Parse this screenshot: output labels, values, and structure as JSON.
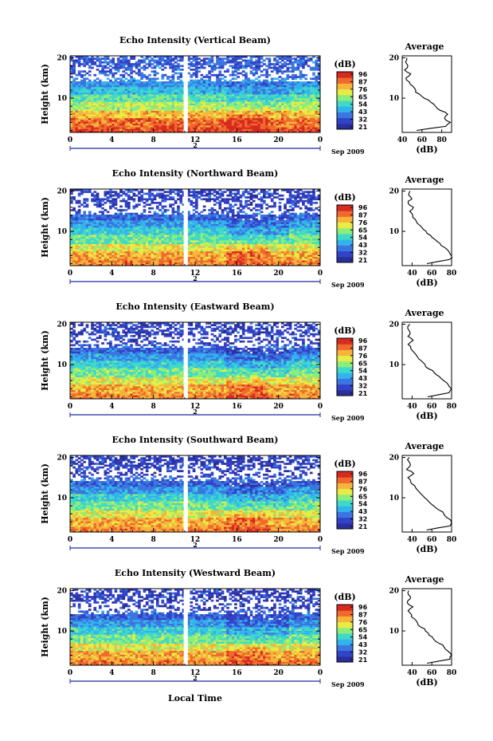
{
  "figure": {
    "xlabel": "Local Time",
    "date_label": "Sep 2009",
    "colorbar_unit": "(dB)",
    "avg_title": "Average",
    "avg_xlabel": "(dB)",
    "ylabel": "Height (km)",
    "day_marker": "2"
  },
  "colors": {
    "scale": [
      "#2a2f9c",
      "#3343c8",
      "#3b76e0",
      "#33b3ee",
      "#3fd9c8",
      "#8cec7c",
      "#e8ec46",
      "#f7b43c",
      "#ef6a2c",
      "#d82a20"
    ],
    "gap": "#ffffff",
    "axis": "#000000"
  },
  "chart_data": [
    {
      "type": "heatmap",
      "title": "Echo Intensity (Vertical Beam)",
      "beam": "vertical",
      "x_ticks": [
        "0",
        "4",
        "8",
        "12",
        "16",
        "20",
        "0"
      ],
      "y_ticks": [
        "10",
        "20"
      ],
      "xlim_hours": [
        0,
        24
      ],
      "ylim_km": [
        1.5,
        20.5
      ],
      "data_gap_hours": [
        10.9,
        11.3
      ],
      "colorbar_ticks": [
        "96",
        "87",
        "76",
        "65",
        "54",
        "43",
        "32",
        "21"
      ],
      "color_range_db": [
        21,
        96
      ],
      "average": {
        "x_ticks": [
          "40",
          "60",
          "80"
        ],
        "y_ticks": [
          "10",
          "20"
        ],
        "xlim": [
          40,
          90
        ],
        "profile": [
          [
            2,
            55
          ],
          [
            3,
            84
          ],
          [
            4,
            88
          ],
          [
            5,
            83
          ],
          [
            6,
            86
          ],
          [
            7,
            78
          ],
          [
            8,
            74
          ],
          [
            9,
            68
          ],
          [
            10,
            63
          ],
          [
            11,
            58
          ],
          [
            12,
            53
          ],
          [
            13,
            50
          ],
          [
            14,
            47
          ],
          [
            15,
            44
          ],
          [
            16,
            48
          ],
          [
            17,
            42
          ],
          [
            18,
            46
          ],
          [
            19,
            44
          ],
          [
            20,
            45
          ]
        ]
      }
    },
    {
      "type": "heatmap",
      "title": "Echo Intensity (Northward Beam)",
      "beam": "northward",
      "x_ticks": [
        "0",
        "4",
        "8",
        "12",
        "16",
        "20",
        "0"
      ],
      "y_ticks": [
        "10",
        "20"
      ],
      "xlim_hours": [
        0,
        24
      ],
      "ylim_km": [
        1.5,
        20.5
      ],
      "data_gap_hours": [
        10.9,
        11.3
      ],
      "colorbar_ticks": [
        "96",
        "87",
        "76",
        "65",
        "54",
        "43",
        "32",
        "21"
      ],
      "color_range_db": [
        21,
        96
      ],
      "average": {
        "x_ticks": [
          "40",
          "60",
          "80"
        ],
        "y_ticks": [
          "10",
          "20"
        ],
        "xlim": [
          30,
          80
        ],
        "profile": [
          [
            2,
            55
          ],
          [
            3,
            78
          ],
          [
            4,
            80
          ],
          [
            5,
            77
          ],
          [
            6,
            73
          ],
          [
            7,
            68
          ],
          [
            8,
            63
          ],
          [
            9,
            58
          ],
          [
            10,
            54
          ],
          [
            11,
            50
          ],
          [
            12,
            46
          ],
          [
            13,
            43
          ],
          [
            14,
            40
          ],
          [
            15,
            37
          ],
          [
            16,
            42
          ],
          [
            17,
            36
          ],
          [
            18,
            39
          ],
          [
            19,
            37
          ],
          [
            20,
            38
          ]
        ]
      }
    },
    {
      "type": "heatmap",
      "title": "Echo Intensity (Eastward Beam)",
      "beam": "eastward",
      "x_ticks": [
        "0",
        "4",
        "8",
        "12",
        "16",
        "20",
        "0"
      ],
      "y_ticks": [
        "10",
        "20"
      ],
      "xlim_hours": [
        0,
        24
      ],
      "ylim_km": [
        1.5,
        20.5
      ],
      "data_gap_hours": [
        10.9,
        11.3
      ],
      "colorbar_ticks": [
        "96",
        "87",
        "76",
        "65",
        "54",
        "43",
        "32",
        "21"
      ],
      "color_range_db": [
        21,
        96
      ],
      "average": {
        "x_ticks": [
          "40",
          "60",
          "80"
        ],
        "y_ticks": [
          "10",
          "20"
        ],
        "xlim": [
          30,
          80
        ],
        "profile": [
          [
            2,
            55
          ],
          [
            3,
            78
          ],
          [
            4,
            80
          ],
          [
            5,
            77
          ],
          [
            6,
            72
          ],
          [
            7,
            67
          ],
          [
            8,
            62
          ],
          [
            9,
            57
          ],
          [
            10,
            53
          ],
          [
            11,
            49
          ],
          [
            12,
            45
          ],
          [
            13,
            42
          ],
          [
            14,
            39
          ],
          [
            15,
            36
          ],
          [
            16,
            41
          ],
          [
            17,
            35
          ],
          [
            18,
            38
          ],
          [
            19,
            36
          ],
          [
            20,
            37
          ]
        ]
      }
    },
    {
      "type": "heatmap",
      "title": "Echo Intensity (Southward Beam)",
      "beam": "southward",
      "x_ticks": [
        "0",
        "4",
        "8",
        "12",
        "16",
        "20",
        "0"
      ],
      "y_ticks": [
        "10",
        "20"
      ],
      "xlim_hours": [
        0,
        24
      ],
      "ylim_km": [
        1.5,
        20.5
      ],
      "data_gap_hours": [
        10.9,
        11.3
      ],
      "colorbar_ticks": [
        "96",
        "87",
        "76",
        "65",
        "54",
        "43",
        "32",
        "21"
      ],
      "color_range_db": [
        21,
        96
      ],
      "average": {
        "x_ticks": [
          "40",
          "60",
          "80"
        ],
        "y_ticks": [
          "10",
          "20"
        ],
        "xlim": [
          30,
          80
        ],
        "profile": [
          [
            2,
            55
          ],
          [
            3,
            78
          ],
          [
            4,
            80
          ],
          [
            5,
            76
          ],
          [
            6,
            72
          ],
          [
            7,
            67
          ],
          [
            8,
            62
          ],
          [
            9,
            57
          ],
          [
            10,
            53
          ],
          [
            11,
            49
          ],
          [
            12,
            45
          ],
          [
            13,
            42
          ],
          [
            14,
            39
          ],
          [
            15,
            36
          ],
          [
            16,
            42
          ],
          [
            17,
            35
          ],
          [
            18,
            38
          ],
          [
            19,
            36
          ],
          [
            20,
            37
          ]
        ]
      }
    },
    {
      "type": "heatmap",
      "title": "Echo Intensity (Westward Beam)",
      "beam": "westward",
      "x_ticks": [
        "0",
        "4",
        "8",
        "12",
        "16",
        "20",
        "0"
      ],
      "y_ticks": [
        "10",
        "20"
      ],
      "xlim_hours": [
        0,
        24
      ],
      "ylim_km": [
        1.5,
        20.5
      ],
      "data_gap_hours": [
        10.9,
        11.3
      ],
      "colorbar_ticks": [
        "96",
        "87",
        "76",
        "65",
        "54",
        "43",
        "32",
        "21"
      ],
      "color_range_db": [
        21,
        96
      ],
      "average": {
        "x_ticks": [
          "40",
          "60",
          "80"
        ],
        "y_ticks": [
          "10",
          "20"
        ],
        "xlim": [
          30,
          80
        ],
        "profile": [
          [
            2,
            55
          ],
          [
            3,
            78
          ],
          [
            4,
            80
          ],
          [
            5,
            77
          ],
          [
            6,
            72
          ],
          [
            7,
            67
          ],
          [
            8,
            62
          ],
          [
            9,
            57
          ],
          [
            10,
            53
          ],
          [
            11,
            49
          ],
          [
            12,
            45
          ],
          [
            13,
            42
          ],
          [
            14,
            39
          ],
          [
            15,
            36
          ],
          [
            16,
            41
          ],
          [
            17,
            35
          ],
          [
            18,
            38
          ],
          [
            19,
            36
          ],
          [
            20,
            37
          ]
        ]
      }
    }
  ]
}
